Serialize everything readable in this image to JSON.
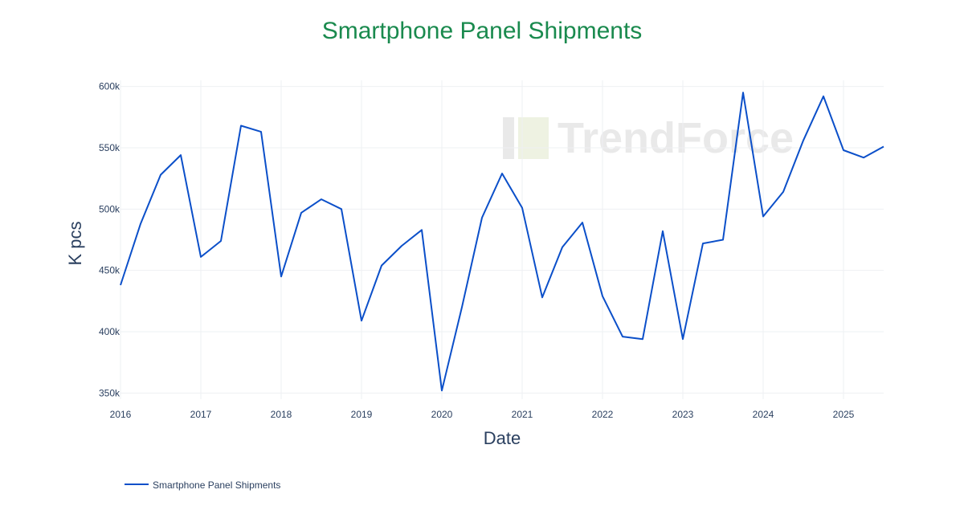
{
  "chart_data": {
    "type": "line",
    "title": "Smartphone Panel Shipments",
    "xlabel": "Date",
    "ylabel": "K pcs",
    "ylim": [
      345000,
      605000
    ],
    "xlim": [
      "2016-01",
      "2025-07"
    ],
    "y_ticks": [
      350000,
      400000,
      450000,
      500000,
      550000,
      600000
    ],
    "y_tick_labels": [
      "350k",
      "400k",
      "450k",
      "500k",
      "550k",
      "600k"
    ],
    "x_tick_labels": [
      "2016",
      "2017",
      "2018",
      "2019",
      "2020",
      "2021",
      "2022",
      "2023",
      "2024",
      "2025"
    ],
    "grid": true,
    "legend_position": "bottom-left",
    "watermark": "TrendForce",
    "series": [
      {
        "name": "Smartphone Panel Shipments",
        "color": "#0b4fc9",
        "x": [
          "2016-01",
          "2016-04",
          "2016-07",
          "2016-10",
          "2017-01",
          "2017-04",
          "2017-07",
          "2017-10",
          "2018-01",
          "2018-04",
          "2018-07",
          "2018-10",
          "2019-01",
          "2019-04",
          "2019-07",
          "2019-10",
          "2020-01",
          "2020-04",
          "2020-07",
          "2020-10",
          "2021-01",
          "2021-04",
          "2021-07",
          "2021-10",
          "2022-01",
          "2022-04",
          "2022-07",
          "2022-10",
          "2023-01",
          "2023-04",
          "2023-07",
          "2023-10",
          "2024-01",
          "2024-04",
          "2024-07",
          "2024-10",
          "2025-01",
          "2025-04",
          "2025-07"
        ],
        "values": [
          438000,
          488000,
          528000,
          544000,
          461000,
          474000,
          568000,
          563000,
          445000,
          497000,
          508000,
          500000,
          409000,
          454000,
          470000,
          483000,
          352000,
          420000,
          493000,
          529000,
          501000,
          428000,
          469000,
          489000,
          429000,
          396000,
          394000,
          482000,
          394000,
          472000,
          475000,
          595000,
          494000,
          514000,
          556000,
          592000,
          548000,
          542000,
          551000
        ]
      }
    ]
  }
}
